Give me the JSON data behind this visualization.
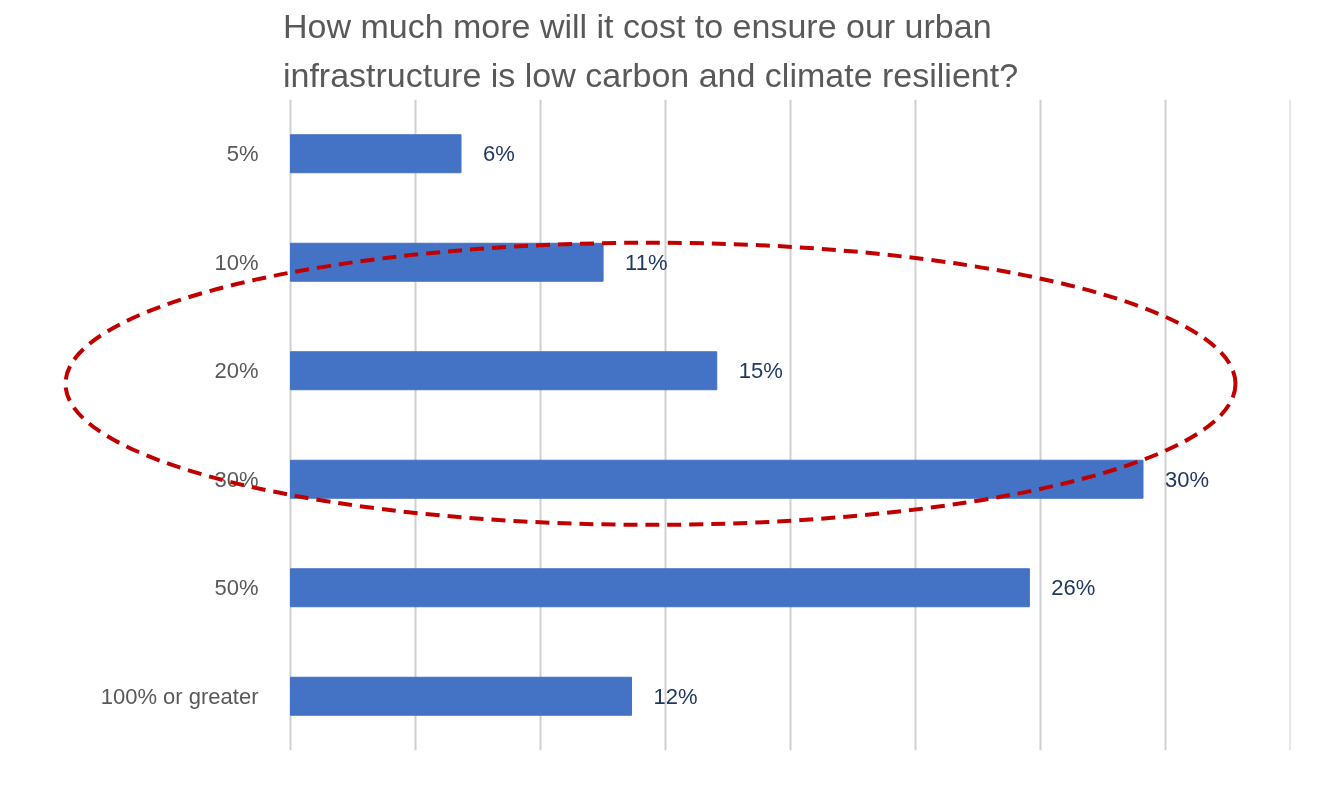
{
  "chart_data": {
    "type": "bar",
    "orientation": "horizontal",
    "title": "How much more will it cost to ensure our urban infrastructure is low carbon and climate resilient?",
    "categories": [
      "5%",
      "10%",
      "20%",
      "30%",
      "50%",
      "100% or greater"
    ],
    "values": [
      6,
      11,
      15,
      30,
      26,
      12
    ],
    "value_labels": [
      "6%",
      "11%",
      "15%",
      "30%",
      "26%",
      "12%"
    ],
    "color": "#4472c4",
    "grid": "x"
  }
}
